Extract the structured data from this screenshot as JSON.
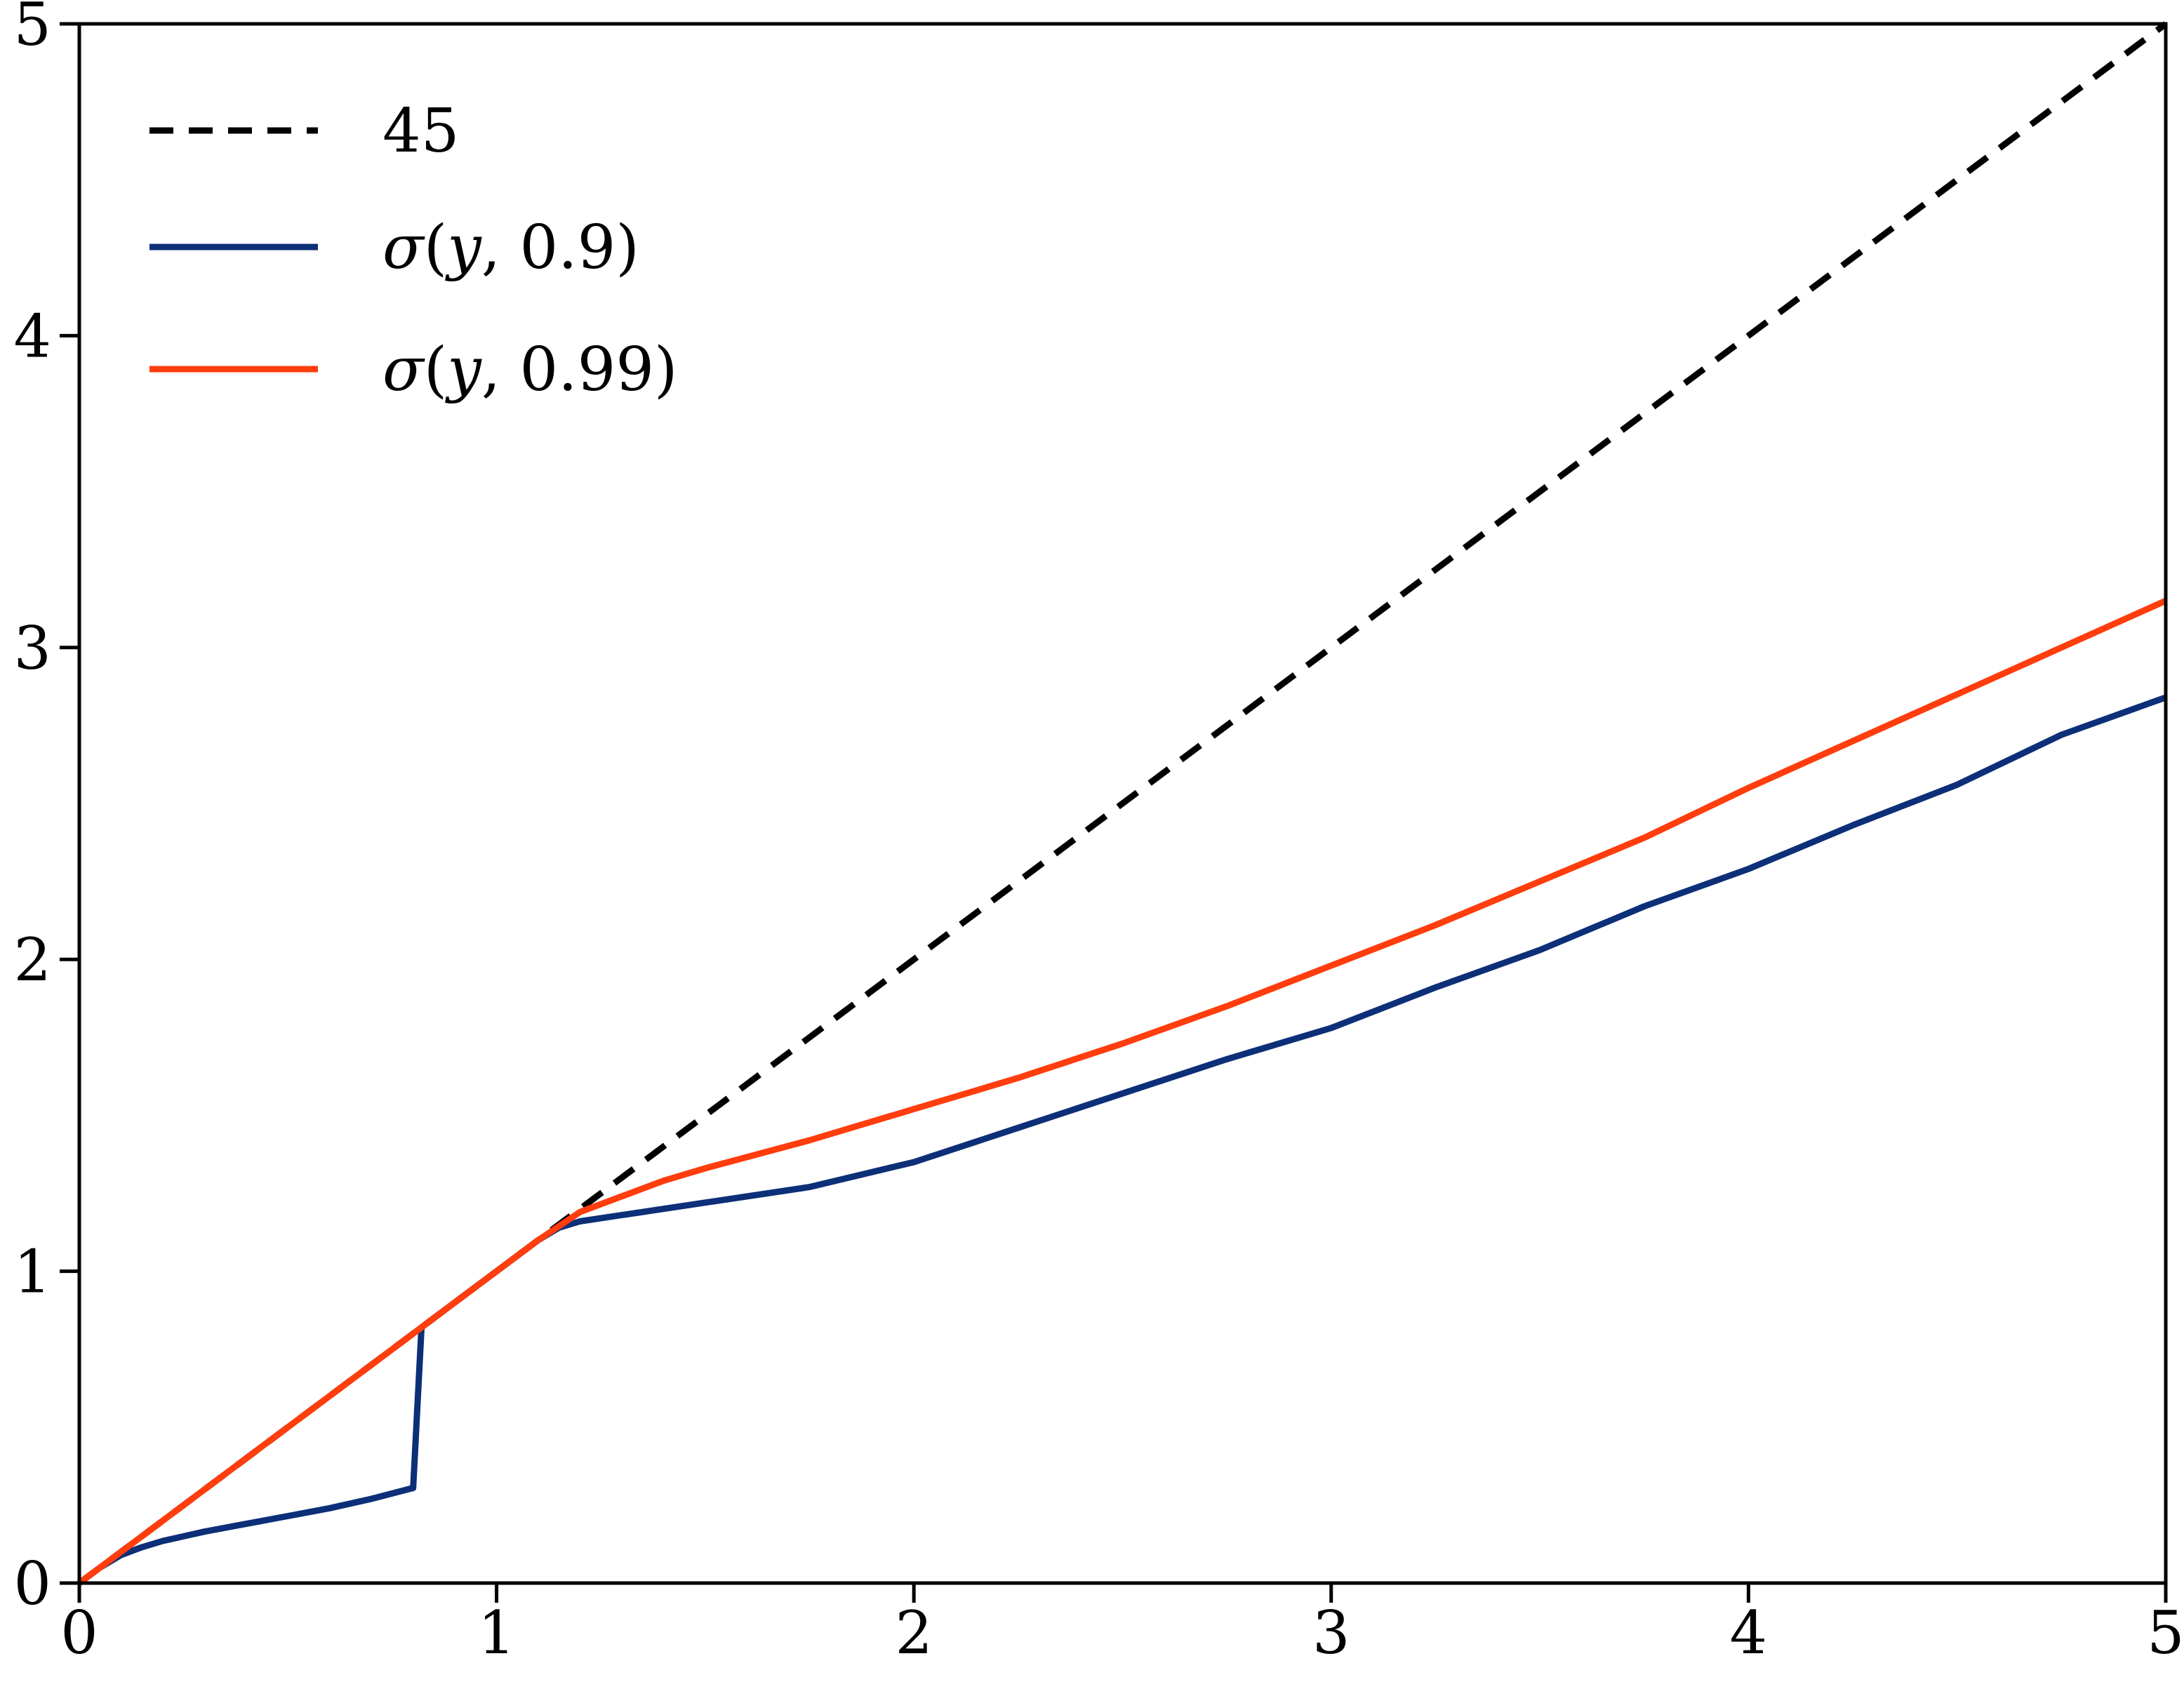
{
  "chart_data": {
    "type": "line",
    "title": "",
    "xlabel": "",
    "ylabel": "",
    "xlim": [
      0,
      5
    ],
    "ylim": [
      0,
      5
    ],
    "x_ticks": [
      "0",
      "1",
      "2",
      "3",
      "4",
      "5"
    ],
    "y_ticks": [
      "0",
      "1",
      "2",
      "3",
      "4",
      "5"
    ],
    "grid": false,
    "legend_position": "top-left",
    "series": [
      {
        "name": "45",
        "display": {
          "text": "45"
        },
        "color": "#000000",
        "style": "dashed",
        "x": [
          0,
          5
        ],
        "y": [
          0,
          5
        ]
      },
      {
        "name": "σ(y, 0.9)",
        "display": {
          "sym": "σ",
          "open": "(",
          "var": "y",
          "rest": ", 0.9)"
        },
        "color": "#0c2f78",
        "style": "solid",
        "x": [
          0,
          0.05,
          0.1,
          0.15,
          0.2,
          0.3,
          0.4,
          0.5,
          0.6,
          0.7,
          0.8,
          0.82,
          0.9,
          1.0,
          1.1,
          1.15,
          1.2,
          1.3,
          1.5,
          1.75,
          2.0,
          2.25,
          2.5,
          2.75,
          3.0,
          3.25,
          3.5,
          3.75,
          4.0,
          4.25,
          4.5,
          4.75,
          5.0
        ],
        "y": [
          0,
          0.05,
          0.09,
          0.115,
          0.135,
          0.165,
          0.19,
          0.215,
          0.24,
          0.27,
          0.305,
          0.82,
          0.9,
          1.0,
          1.1,
          1.14,
          1.16,
          1.18,
          1.22,
          1.27,
          1.35,
          1.46,
          1.57,
          1.68,
          1.78,
          1.91,
          2.03,
          2.17,
          2.29,
          2.43,
          2.56,
          2.72,
          2.84
        ]
      },
      {
        "name": "σ(y, 0.99)",
        "display": {
          "sym": "σ",
          "open": "(",
          "var": "y",
          "rest": ", 0.99)"
        },
        "color": "#ff3d0d",
        "style": "solid",
        "x": [
          0,
          0.2,
          0.4,
          0.6,
          0.8,
          1.0,
          1.1,
          1.2,
          1.3,
          1.4,
          1.5,
          1.75,
          2.0,
          2.25,
          2.5,
          2.75,
          3.0,
          3.25,
          3.5,
          3.75,
          4.0,
          4.25,
          4.5,
          4.75,
          5.0
        ],
        "y": [
          0,
          0.2,
          0.4,
          0.6,
          0.8,
          1.0,
          1.1,
          1.19,
          1.24,
          1.29,
          1.33,
          1.42,
          1.52,
          1.62,
          1.73,
          1.85,
          1.98,
          2.11,
          2.25,
          2.39,
          2.55,
          2.7,
          2.85,
          3.0,
          3.15
        ]
      }
    ]
  }
}
